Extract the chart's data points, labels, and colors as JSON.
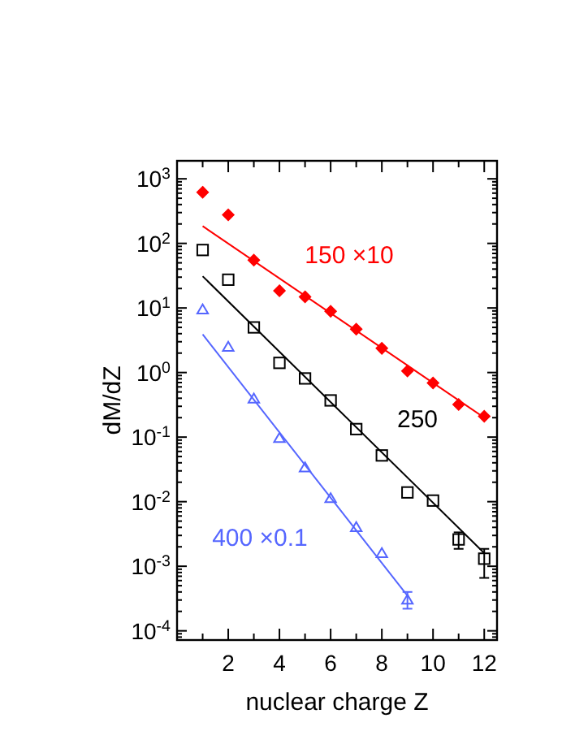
{
  "chart_data": {
    "type": "scatter",
    "xlabel": "nuclear charge Z",
    "ylabel": "dM/dZ",
    "log": "y",
    "grid": false,
    "xlim": [
      0,
      12.5
    ],
    "xticks": [
      {
        "value": 1,
        "label": null
      },
      2,
      {
        "value": 3,
        "label": null
      },
      4,
      {
        "value": 5,
        "label": null
      },
      6,
      {
        "value": 7,
        "label": null
      },
      8,
      {
        "value": 9,
        "label": null
      },
      10,
      {
        "value": 11,
        "label": null
      },
      12
    ],
    "ylim": [
      7.2e-05,
      1900
    ],
    "yticks": [
      {
        "value": 0.0001,
        "label": "10$^{-4}$"
      },
      {
        "value": 0.001,
        "label": "10$^{-3}$"
      },
      {
        "value": 0.01,
        "label": "10$^{-2}$"
      },
      {
        "value": 0.1,
        "label": "10$^{-1}$"
      },
      {
        "value": 1,
        "label": "10$^{0}$"
      },
      {
        "value": 10,
        "label": "10$^{1}$"
      },
      {
        "value": 100,
        "label": "10$^{2}$"
      },
      {
        "value": 1000,
        "label": "10$^{3}$"
      }
    ],
    "series": [
      {
        "name": "150 ×10",
        "marker": "diamond",
        "color": "#ff0000",
        "x": [
          1,
          2,
          3,
          4,
          5,
          6,
          7,
          8,
          9,
          10,
          11,
          12
        ],
        "values": [
          620,
          277,
          55,
          18.5,
          14.9,
          8.9,
          4.7,
          2.37,
          1.06,
          0.69,
          0.32,
          0.21
        ]
      },
      {
        "type": "line",
        "marker": "none",
        "color": "#ff0000",
        "x": [
          1,
          12
        ],
        "values": [
          185,
          0.2
        ]
      },
      {
        "name": "250",
        "marker": "square",
        "color": "#000000",
        "x": [
          1,
          2,
          3,
          4,
          5,
          6,
          7,
          8,
          9,
          10,
          11,
          12
        ],
        "values": [
          79,
          27.4,
          5,
          1.41,
          0.81,
          0.37,
          0.133,
          0.052,
          0.0139,
          0.0104,
          0.0026,
          0.00131
        ],
        "errors": [
          null,
          null,
          null,
          null,
          null,
          null,
          null,
          null,
          null,
          null,
          [
            0.00186,
            0.00335
          ],
          [
            0.00066,
            0.00186
          ]
        ]
      },
      {
        "type": "line",
        "marker": "none",
        "color": "#000000",
        "x": [
          1,
          12
        ],
        "values": [
          31,
          0.0016
        ]
      },
      {
        "name": "400 ×0.1",
        "marker": "triangle",
        "color": "#5566ff",
        "x": [
          1,
          2,
          3,
          4,
          5,
          6,
          7,
          8,
          9
        ],
        "values": [
          9.4,
          2.47,
          0.39,
          0.096,
          0.0335,
          0.0112,
          0.004,
          0.00158,
          0.0003
        ],
        "errors": [
          null,
          null,
          null,
          null,
          null,
          null,
          null,
          null,
          [
            0.00022,
            0.0004
          ]
        ]
      },
      {
        "type": "line",
        "marker": "none",
        "color": "#5566ff",
        "x": [
          1,
          9
        ],
        "values": [
          3.9,
          0.00035
        ]
      }
    ]
  }
}
